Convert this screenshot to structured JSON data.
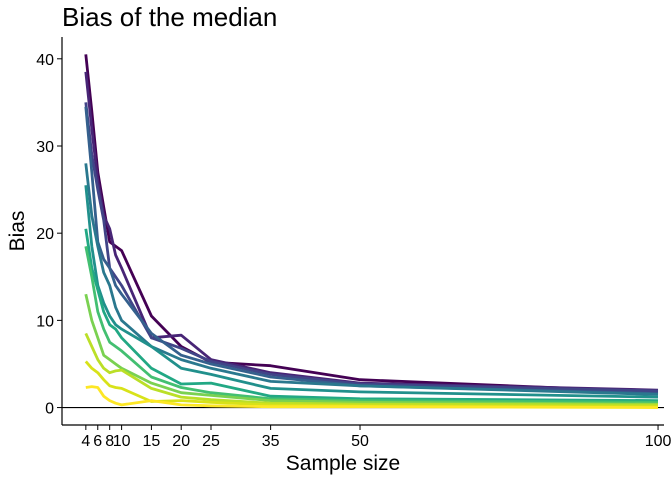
{
  "chart_data": {
    "type": "line",
    "title": "Bias of the median",
    "xlabel": "Sample size",
    "ylabel": "Bias",
    "x_ticks": [
      4,
      6,
      8,
      10,
      15,
      20,
      25,
      35,
      50,
      100
    ],
    "y_ticks": [
      0,
      10,
      20,
      30,
      40
    ],
    "xlim": [
      0,
      101
    ],
    "ylim": [
      -2,
      42.5
    ],
    "grid": false,
    "legend": "none",
    "reference_line_y": 0,
    "x": [
      4,
      5,
      6,
      7,
      8,
      9,
      10,
      15,
      20,
      25,
      35,
      50,
      100
    ],
    "series": [
      {
        "color": "#440154",
        "values": [
          40.5,
          34.0,
          27.0,
          23.0,
          19.0,
          18.5,
          18.0,
          10.5,
          7.0,
          5.2,
          4.8,
          3.2,
          1.8
        ]
      },
      {
        "color": "#482576",
        "values": [
          38.5,
          32.0,
          26.0,
          22.0,
          20.5,
          17.5,
          16.0,
          8.0,
          8.3,
          5.5,
          4.0,
          2.8,
          2.0
        ]
      },
      {
        "color": "#414487",
        "values": [
          35.0,
          29.0,
          25.0,
          21.5,
          16.0,
          15.0,
          14.0,
          8.0,
          6.8,
          5.3,
          3.8,
          2.7,
          1.9
        ]
      },
      {
        "color": "#35608D",
        "values": [
          34.5,
          27.0,
          19.0,
          17.0,
          16.0,
          14.0,
          13.0,
          8.5,
          6.0,
          5.0,
          3.5,
          2.5,
          1.6
        ]
      },
      {
        "color": "#2A788E",
        "values": [
          28.0,
          22.0,
          18.5,
          15.5,
          14.0,
          11.5,
          10.0,
          7.0,
          5.5,
          4.5,
          3.0,
          2.5,
          1.5
        ]
      },
      {
        "color": "#21908C",
        "values": [
          25.5,
          18.5,
          14.0,
          12.0,
          10.5,
          9.5,
          9.0,
          7.0,
          4.5,
          3.8,
          2.2,
          1.8,
          1.2
        ]
      },
      {
        "color": "#22A884",
        "values": [
          20.5,
          16.0,
          13.5,
          11.0,
          9.5,
          9.0,
          8.0,
          4.5,
          2.7,
          2.8,
          1.3,
          1.0,
          0.8
        ]
      },
      {
        "color": "#43BF71",
        "values": [
          18.5,
          15.0,
          11.0,
          9.0,
          7.5,
          7.0,
          6.5,
          3.5,
          2.3,
          1.7,
          1.0,
          0.8,
          0.6
        ]
      },
      {
        "color": "#7AD151",
        "values": [
          13.0,
          10.0,
          8.0,
          6.0,
          5.5,
          5.0,
          4.5,
          2.8,
          1.7,
          1.4,
          0.8,
          0.6,
          0.4
        ]
      },
      {
        "color": "#BBDF27",
        "values": [
          8.5,
          7.0,
          5.5,
          4.5,
          4.0,
          4.2,
          4.3,
          2.2,
          1.2,
          0.9,
          0.5,
          0.4,
          0.3
        ]
      },
      {
        "color": "#D8E219",
        "values": [
          5.3,
          4.5,
          4.0,
          3.2,
          2.5,
          2.3,
          2.2,
          0.7,
          0.8,
          0.6,
          0.3,
          0.2,
          0.1
        ]
      },
      {
        "color": "#FDE725",
        "values": [
          2.3,
          2.4,
          2.3,
          1.3,
          0.8,
          0.5,
          0.3,
          0.8,
          0.3,
          0.2,
          0.1,
          0.1,
          0.0
        ]
      }
    ]
  }
}
